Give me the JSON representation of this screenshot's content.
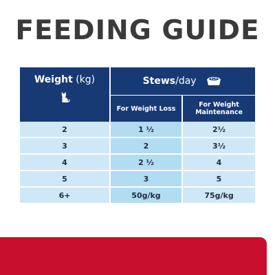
{
  "title": "FEEDING GUIDE",
  "table": {
    "weight_header_bold": "Weight",
    "weight_header_unit": " (kg)",
    "stews_header_bold": "Stews",
    "stews_header_light": "/day",
    "loss_header_prefix": "For ",
    "loss_header_bold": "Weight Loss",
    "maint_header_prefix": "For ",
    "maint_header_bold": "Weight Maintenance",
    "rows": [
      {
        "weight": "2",
        "loss": "1 ½",
        "maintenance": "2½"
      },
      {
        "weight": "3",
        "loss": "2",
        "maintenance": "3½"
      },
      {
        "weight": "4",
        "loss": "2 ½",
        "maintenance": "4"
      },
      {
        "weight": "5",
        "loss": "3",
        "maintenance": "5"
      },
      {
        "weight": "6+",
        "loss": "50g/kg",
        "maintenance": "75g/kg"
      }
    ]
  },
  "icons": {
    "weight": "cat-icon",
    "stews": "food-bowl-icon"
  },
  "colors": {
    "header_navy": "#173a74",
    "cell_light": "#cfe8f7",
    "cell_mid": "#b2dcf2",
    "band_red": "#c8102e"
  }
}
